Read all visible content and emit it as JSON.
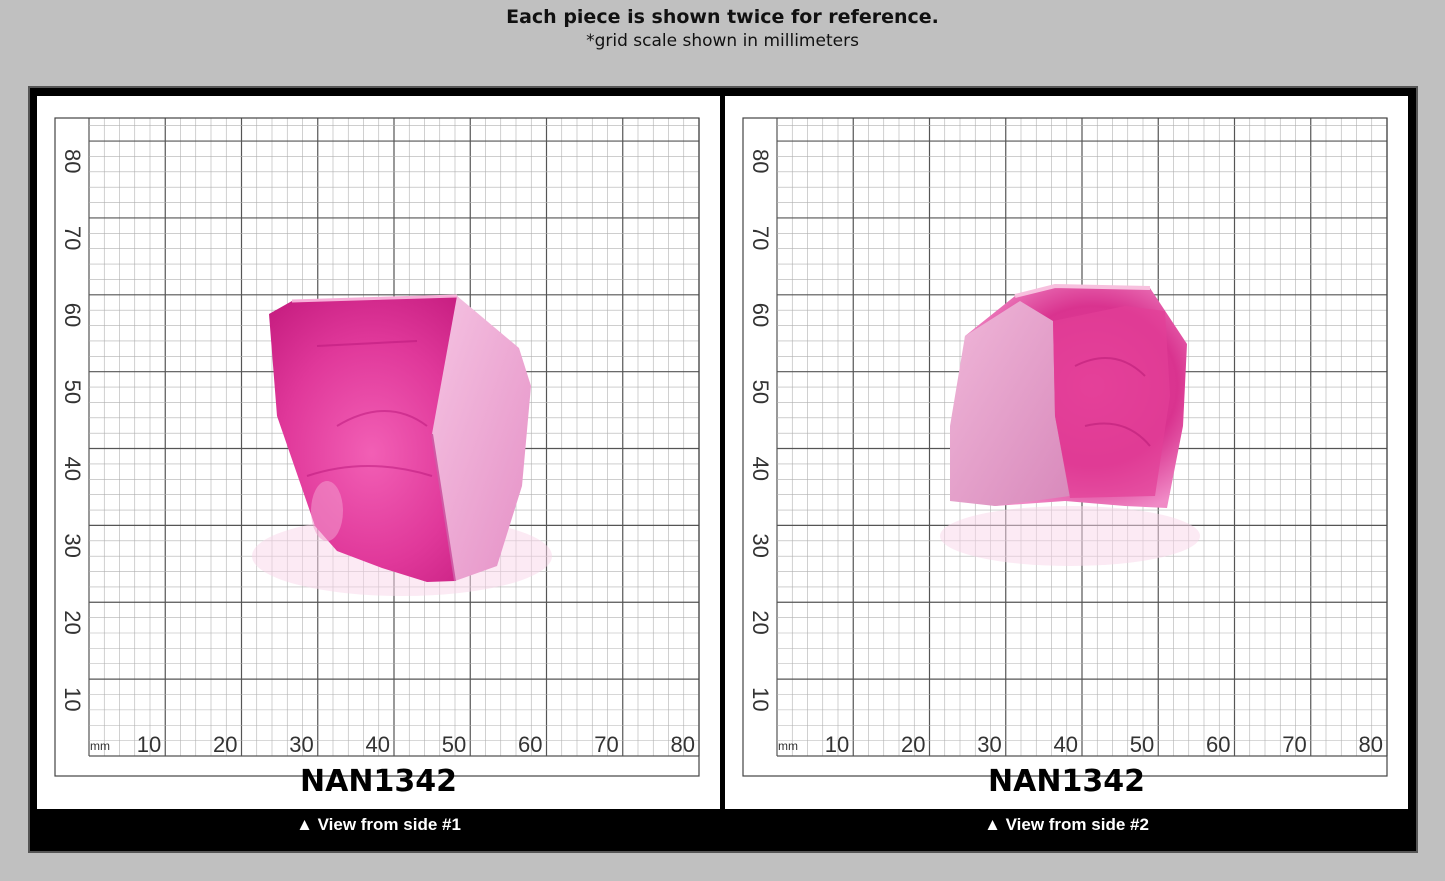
{
  "header": {
    "title": "Each piece is shown twice for reference.",
    "subtitle": "*grid scale shown in millimeters"
  },
  "colors": {
    "background": "#c0c0c0",
    "frame": "#000000",
    "gem": "#e0389a",
    "gem_face": "#f0a8d4",
    "grid_major": "#555555",
    "grid_minor": "#b0b0b0"
  },
  "grid": {
    "unit_label": "mm",
    "x_ticks": [
      "10",
      "20",
      "30",
      "40",
      "50",
      "60",
      "70",
      "80"
    ],
    "y_ticks": [
      "10",
      "20",
      "30",
      "40",
      "50",
      "60",
      "70",
      "80"
    ]
  },
  "panels": [
    {
      "code": "NAN1342",
      "caption": "▲ View from side #1"
    },
    {
      "code": "NAN1342",
      "caption": "▲ View from side #2"
    }
  ]
}
